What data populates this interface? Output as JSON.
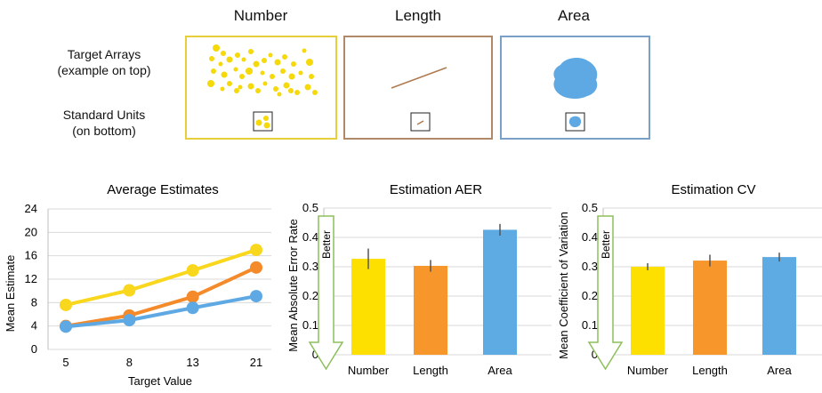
{
  "stimuli": {
    "columns": [
      "Number",
      "Length",
      "Area"
    ],
    "row_labels": {
      "target": [
        "Target Arrays",
        "(example on top)"
      ],
      "standard": [
        "Standard Units",
        "(on bottom)"
      ]
    },
    "colors": {
      "number": "#f5d90a",
      "length": "#b07a4f",
      "area": "#5ea9e3"
    },
    "border_colors": {
      "number": "#e6cf3a",
      "length": "#b08a68",
      "area": "#7aa0c8"
    }
  },
  "chart_data": [
    {
      "type": "line",
      "title": "Average Estimates",
      "xlabel": "Target Value",
      "ylabel": "Mean Estimate",
      "categories": [
        "5",
        "8",
        "13",
        "21"
      ],
      "ylim": [
        0,
        24
      ],
      "yticks": [
        "0",
        "4",
        "8",
        "12",
        "16",
        "20",
        "24"
      ],
      "grid": true,
      "series": [
        {
          "color": "#f9d71c",
          "values": [
            7.6,
            10.1,
            13.5,
            17.0
          ]
        },
        {
          "color": "#f58a2a",
          "values": [
            4.0,
            5.8,
            9.0,
            14.0
          ]
        },
        {
          "color": "#5ea9e3",
          "values": [
            3.9,
            5.0,
            7.1,
            9.1
          ]
        }
      ]
    },
    {
      "type": "bar",
      "title": "Estimation AER",
      "ylabel": "Mean Absolute Error Rate",
      "categories": [
        "Number",
        "Length",
        "Area"
      ],
      "values": [
        0.327,
        0.303,
        0.426
      ],
      "errors": [
        0.035,
        0.02,
        0.02
      ],
      "colors": [
        "#fde000",
        "#f7962b",
        "#5eaae3"
      ],
      "ylim": [
        0,
        0.5
      ],
      "yticks": [
        "0",
        "0.1",
        "0.2",
        "0.3",
        "0.4",
        "0.5"
      ],
      "grid": true,
      "annotation": "Better"
    },
    {
      "type": "bar",
      "title": "Estimation CV",
      "ylabel": "Mean Coefficient of Variation",
      "categories": [
        "Number",
        "Length",
        "Area"
      ],
      "values": [
        0.3,
        0.321,
        0.333
      ],
      "errors": [
        0.012,
        0.02,
        0.015
      ],
      "colors": [
        "#fde000",
        "#f7962b",
        "#5eaae3"
      ],
      "ylim": [
        0,
        0.5
      ],
      "yticks": [
        "0",
        "0.1",
        "0.2",
        "0.3",
        "0.4",
        "0.5"
      ],
      "grid": true,
      "annotation": "Better"
    }
  ]
}
